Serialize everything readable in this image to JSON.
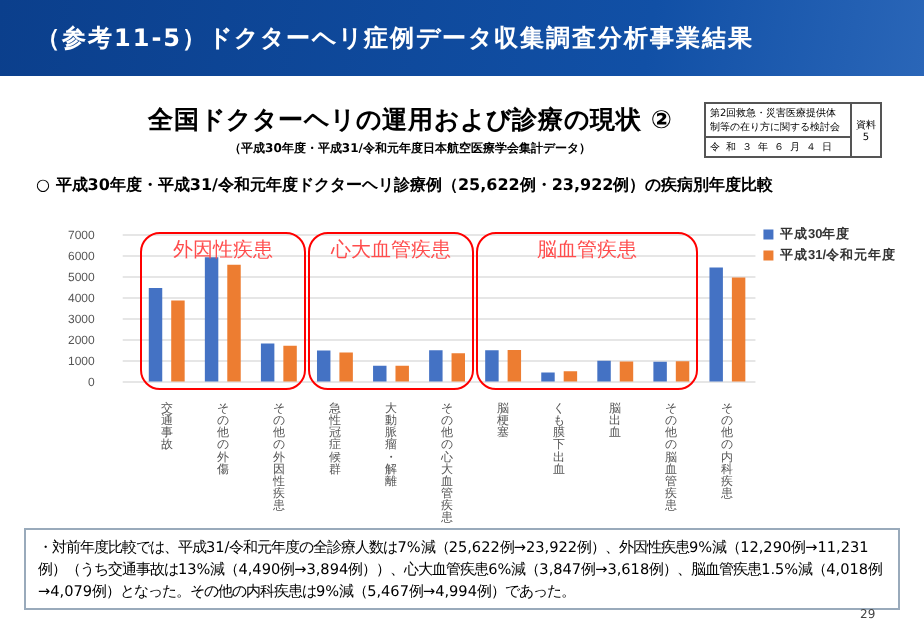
{
  "chart_data": {
    "type": "bar",
    "title": "全国ドクターヘリの運用および診療の現状 ②",
    "subtitle": "（平成30年度・平成31/令和元年度日本航空医療学会集計データ）",
    "categories": [
      "交通事故",
      "その他の外傷",
      "その他の外因性疾患",
      "急性冠症候群",
      "大動脈瘤・解離",
      "その他の心大血管疾患",
      "脳梗塞",
      "くも膜下出血",
      "脳出血",
      "その他の脳血管疾患",
      "その他の内科疾患"
    ],
    "series": [
      {
        "name": "平成30年度",
        "color": "#4472c4",
        "values": [
          4490,
          5950,
          1850,
          1520,
          790,
          1530,
          1530,
          480,
          1030,
          980,
          5467
        ]
      },
      {
        "name": "平成31/令和元年度",
        "color": "#ed7d31",
        "values": [
          3894,
          5600,
          1740,
          1430,
          800,
          1390,
          1540,
          530,
          1000,
          1010,
          4994
        ]
      }
    ],
    "ylim": [
      0,
      7000
    ],
    "yticks": [
      0,
      1000,
      2000,
      3000,
      4000,
      5000,
      6000,
      7000
    ],
    "grid": "y",
    "legend": "top right",
    "annotations": [
      "（参考11-5）ドクターヘリ症例データ収集調査分析事業結果",
      "第2回救急・災害医療提供体制等の在り方に関する検討会",
      "令和３年６月４日",
      "資料5",
      "○ 平成30年度・平成31/令和元年度ドクターヘリ診療例（25,622例・23,922例）の疾病別年度比較",
      "・対前年度比較では、平成31/令和元年度の全診療人数は7%減（25,622例→23,922例）、外因性疾患9%減（12,290例→11,231例）（うち交通事故は13%減（4,490例→3,894例））、心大血管疾患6%減（3,847例→3,618例）、脳血管疾患1.5%減（4,018例→4,079例）となった。その他の内科疾患は9%減（5,467例→4,994例）であった。",
      "29",
      "外因性疾患",
      "心大血管疾患",
      "脳血管疾患"
    ]
  }
}
